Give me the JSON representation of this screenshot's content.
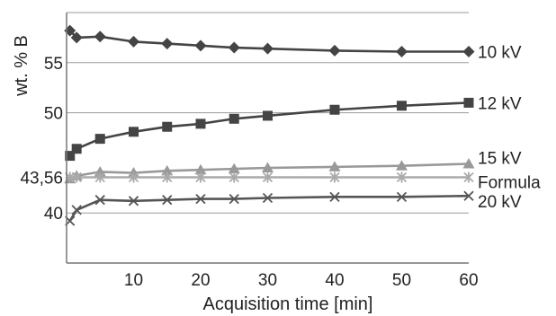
{
  "chart_data": {
    "type": "line",
    "xlabel": "Acquisition time  [min]",
    "ylabel": "wt. % B",
    "xlim": [
      0,
      60
    ],
    "ylim": [
      35,
      60
    ],
    "x_ticks": [
      "10",
      "20",
      "30",
      "40",
      "50",
      "60"
    ],
    "y_ticks": [
      "40",
      "43,56",
      "50",
      "55"
    ],
    "grid": "horizontal",
    "legend": "right-edge labels",
    "series": [
      {
        "name": "10 kV",
        "marker": "diamond",
        "color": "#444444",
        "x": [
          0.5,
          1.5,
          5,
          10,
          15,
          20,
          25,
          30,
          40,
          50,
          60
        ],
        "y": [
          58.2,
          57.5,
          57.6,
          57.1,
          56.9,
          56.7,
          56.5,
          56.4,
          56.2,
          56.1,
          56.1
        ]
      },
      {
        "name": "12 kV",
        "marker": "square",
        "color": "#444444",
        "x": [
          0.5,
          1.5,
          5,
          10,
          15,
          20,
          25,
          30,
          40,
          50,
          60
        ],
        "y": [
          45.7,
          46.4,
          47.4,
          48.1,
          48.6,
          48.9,
          49.4,
          49.7,
          50.3,
          50.7,
          51.0
        ]
      },
      {
        "name": "15 kV",
        "marker": "triangle",
        "color": "#999999",
        "x": [
          0.5,
          1.5,
          5,
          10,
          15,
          20,
          25,
          30,
          40,
          50,
          60
        ],
        "y": [
          43.4,
          43.7,
          44.1,
          44.0,
          44.2,
          44.3,
          44.4,
          44.5,
          44.6,
          44.7,
          44.9
        ]
      },
      {
        "name": "Formula",
        "marker": "asterisk",
        "color": "#aaaaaa",
        "x": [
          0.5,
          1.5,
          5,
          10,
          15,
          20,
          25,
          30,
          40,
          50,
          60
        ],
        "y": [
          43.56,
          43.56,
          43.56,
          43.56,
          43.56,
          43.56,
          43.56,
          43.56,
          43.56,
          43.56,
          43.56
        ]
      },
      {
        "name": "20 kV",
        "marker": "x",
        "color": "#555555",
        "x": [
          0.5,
          1.5,
          5,
          10,
          15,
          20,
          25,
          30,
          40,
          50,
          60
        ],
        "y": [
          39.2,
          40.3,
          41.3,
          41.2,
          41.3,
          41.4,
          41.4,
          41.5,
          41.6,
          41.6,
          41.7
        ]
      }
    ]
  }
}
